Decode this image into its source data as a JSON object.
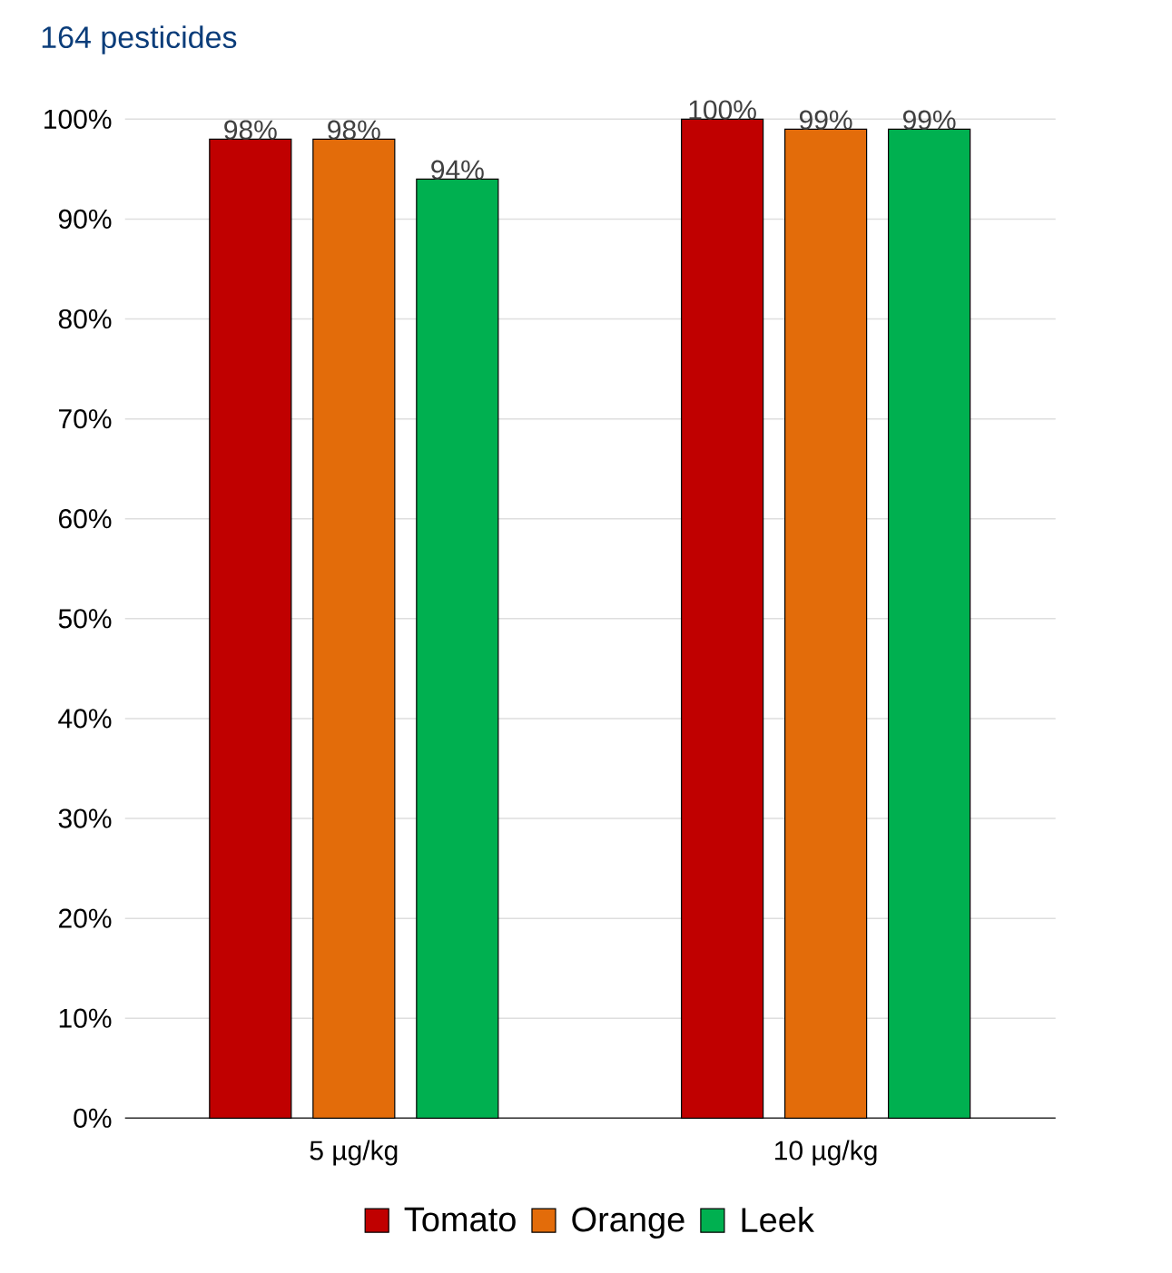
{
  "chart_data": {
    "type": "bar",
    "subtitle": "164 pesticides",
    "categories": [
      "5 µg/kg",
      "10 µg/kg"
    ],
    "series": [
      {
        "name": "Tomato",
        "color": "#c00000",
        "values": [
          98,
          100
        ],
        "value_labels": [
          "98%",
          "100%"
        ]
      },
      {
        "name": "Orange",
        "color": "#e36c0a",
        "values": [
          98,
          99
        ],
        "value_labels": [
          "98%",
          "99%"
        ]
      },
      {
        "name": "Leek",
        "color": "#00b050",
        "values": [
          94,
          99
        ],
        "value_labels": [
          "94%",
          "99%"
        ]
      }
    ],
    "ylim": [
      0,
      100
    ],
    "yticks": [
      {
        "value": 0,
        "label": "0%"
      },
      {
        "value": 10,
        "label": "10%"
      },
      {
        "value": 20,
        "label": "20%"
      },
      {
        "value": 30,
        "label": "30%"
      },
      {
        "value": 40,
        "label": "40%"
      },
      {
        "value": 50,
        "label": "50%"
      },
      {
        "value": 60,
        "label": "60%"
      },
      {
        "value": 70,
        "label": "70%"
      },
      {
        "value": 80,
        "label": "80%"
      },
      {
        "value": 90,
        "label": "90%"
      },
      {
        "value": 100,
        "label": "100%"
      }
    ],
    "grid": "y",
    "legend": "bottom"
  }
}
